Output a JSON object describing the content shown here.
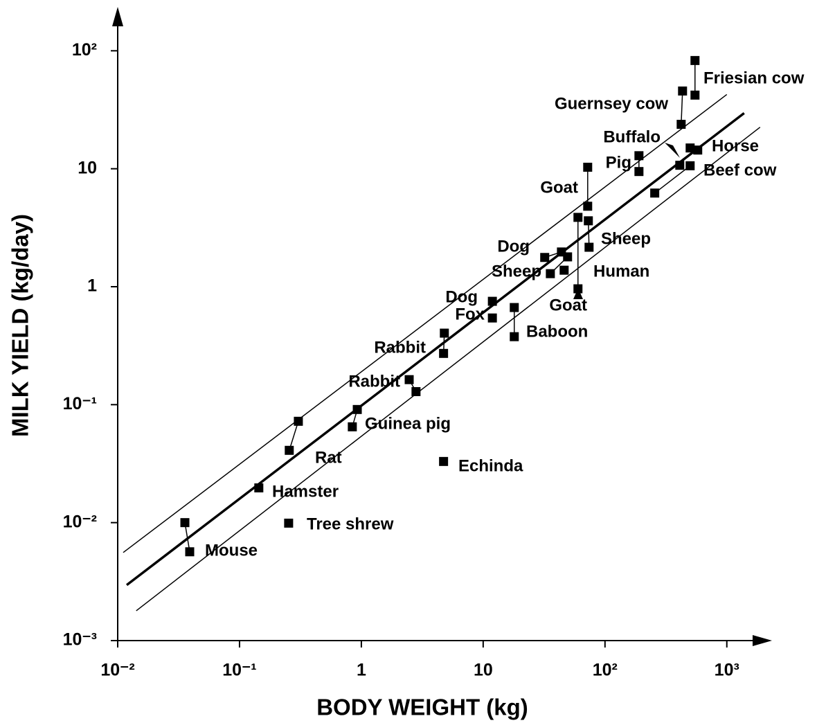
{
  "chart_data": {
    "type": "scatter",
    "x_label": "BODY WEIGHT (kg)",
    "y_label": "MILK YIELD (kg/day)",
    "log_x": true,
    "log_y": true,
    "color": "#000000",
    "xlim": [
      0.01,
      2200
    ],
    "ylim": [
      0.001,
      220
    ],
    "xticks": [
      {
        "value": 0.01,
        "label": "10⁻²"
      },
      {
        "value": 0.1,
        "label": "10⁻¹"
      },
      1,
      10,
      {
        "value": 100,
        "label": "10²"
      },
      {
        "value": 1000,
        "label": "10³"
      }
    ],
    "yticks": [
      {
        "value": 0.001,
        "label": "10⁻³"
      },
      {
        "value": 0.01,
        "label": "10⁻²"
      },
      {
        "value": 0.1,
        "label": "10⁻¹"
      },
      1,
      10,
      {
        "value": 100,
        "label": "10²"
      }
    ],
    "series": [
      {
        "name": "Mouse",
        "x": [
          0.0356,
          0.039
        ],
        "values": [
          0.01,
          0.00566
        ]
      },
      {
        "name": "Tree shrew",
        "x": [
          0.253
        ],
        "values": [
          0.0099
        ]
      },
      {
        "name": "Hamster",
        "x": [
          0.144
        ],
        "values": [
          0.0197
        ]
      },
      {
        "name": "Rat",
        "x": [
          0.256,
          0.304
        ],
        "values": [
          0.041,
          0.0723
        ]
      },
      {
        "name": "Guinea pig",
        "x": [
          0.843,
          0.926
        ],
        "values": [
          0.0649,
          0.091
        ]
      },
      {
        "name": "Rabbit",
        "x": [
          2.47,
          2.81
        ],
        "values": [
          0.163,
          0.129
        ]
      },
      {
        "name": "Rabbit",
        "x": [
          4.8,
          4.73
        ],
        "values": [
          0.404,
          0.272
        ]
      },
      {
        "name": "Echinda",
        "x": [
          4.73
        ],
        "values": [
          0.033
        ]
      },
      {
        "name": "Dog",
        "x": [
          11.9
        ],
        "values": [
          0.752
        ]
      },
      {
        "name": "Fox",
        "x": [
          11.9
        ],
        "values": [
          0.543
        ]
      },
      {
        "name": "Baboon",
        "x": [
          18.0,
          18.0
        ],
        "values": [
          0.666,
          0.377
        ]
      },
      {
        "name": "Dog",
        "x": [
          32.0,
          43.9
        ],
        "values": [
          1.77,
          1.97
        ]
      },
      {
        "name": "Sheep",
        "x": [
          35.6,
          49.3
        ],
        "values": [
          1.29,
          1.79
        ]
      },
      {
        "name": "Human",
        "x": [
          46.2
        ],
        "values": [
          1.38
        ]
      },
      {
        "name": "Goat",
        "x": [
          60.0,
          60.0
        ],
        "values": [
          0.96,
          3.87
        ]
      },
      {
        "name": "Goat",
        "x": [
          72.1,
          72.1
        ],
        "values": [
          10.3,
          4.81
        ]
      },
      {
        "name": "Sheep",
        "x": [
          73.0,
          74.0
        ],
        "values": [
          3.62,
          2.16
        ]
      },
      {
        "name": "Pig",
        "x": [
          190,
          190
        ],
        "values": [
          12.9,
          9.47
        ]
      },
      {
        "name": "Buffalo",
        "x": [
          411
        ],
        "values": [
          10.7
        ]
      },
      {
        "name": "Beef cow",
        "x": [
          256,
          500
        ],
        "values": [
          6.22,
          10.6
        ]
      },
      {
        "name": "Horse",
        "x": [
          500,
          577
        ],
        "values": [
          15.0,
          14.4
        ]
      },
      {
        "name": "Guernsey cow",
        "x": [
          433,
          422
        ],
        "values": [
          45.6,
          23.8
        ]
      },
      {
        "name": "Friesian cow",
        "x": [
          548,
          548
        ],
        "values": [
          82.7,
          42.1
        ]
      }
    ],
    "fit_lines": [
      {
        "x": [
          0.0111,
          1000
        ],
        "values": [
          0.00558,
          42.6
        ]
      },
      {
        "x": [
          0.01186,
          1387
        ],
        "values": [
          0.00296,
          29.6
        ]
      },
      {
        "x": [
          0.0142,
          1875
        ],
        "values": [
          0.00179,
          22.5
        ]
      }
    ]
  }
}
